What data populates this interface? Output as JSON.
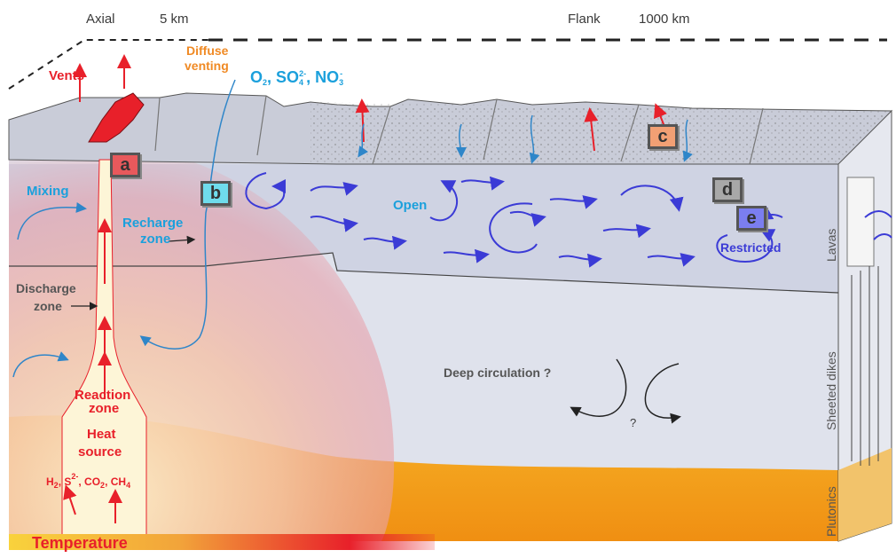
{
  "header": {
    "axial": "Axial",
    "dist_near": "5 km",
    "flank": "Flank",
    "dist_far": "1000 km"
  },
  "labels": {
    "vents": "Vents",
    "diffuse_1": "Diffuse",
    "diffuse_2": "venting",
    "oxidants": "O2, SO42-, NO3-",
    "mixing": "Mixing",
    "recharge_1": "Recharge",
    "recharge_2": "zone",
    "discharge_1": "Discharge",
    "discharge_2": "zone",
    "open": "Open",
    "restricted": "Restricted",
    "deep_circulation": "Deep circulation ?",
    "question": "?",
    "reaction_1": "Reaction",
    "reaction_2": "zone",
    "heat_1": "Heat",
    "heat_2": "source",
    "reductants": "H2, S2-, CO2, CH4",
    "temperature": "Temperature"
  },
  "layers": {
    "lavas": "Lavas",
    "dikes": "Sheeted dikes",
    "plutonics": "Plutonics"
  },
  "boxes": [
    {
      "letter": "a",
      "color": "#e8595c"
    },
    {
      "letter": "b",
      "color": "#6fdcec"
    },
    {
      "letter": "c",
      "color": "#f2a074"
    },
    {
      "letter": "d",
      "color": "#a8a8a8"
    },
    {
      "letter": "e",
      "color": "#7b7ef0"
    }
  ],
  "colors": {
    "red": "#e8202a",
    "blue": "#1ba0dc",
    "orange": "#f08a24",
    "arrow": "#3b3bd6",
    "crust": "#d9dde8",
    "magma": "#f5a31a"
  }
}
